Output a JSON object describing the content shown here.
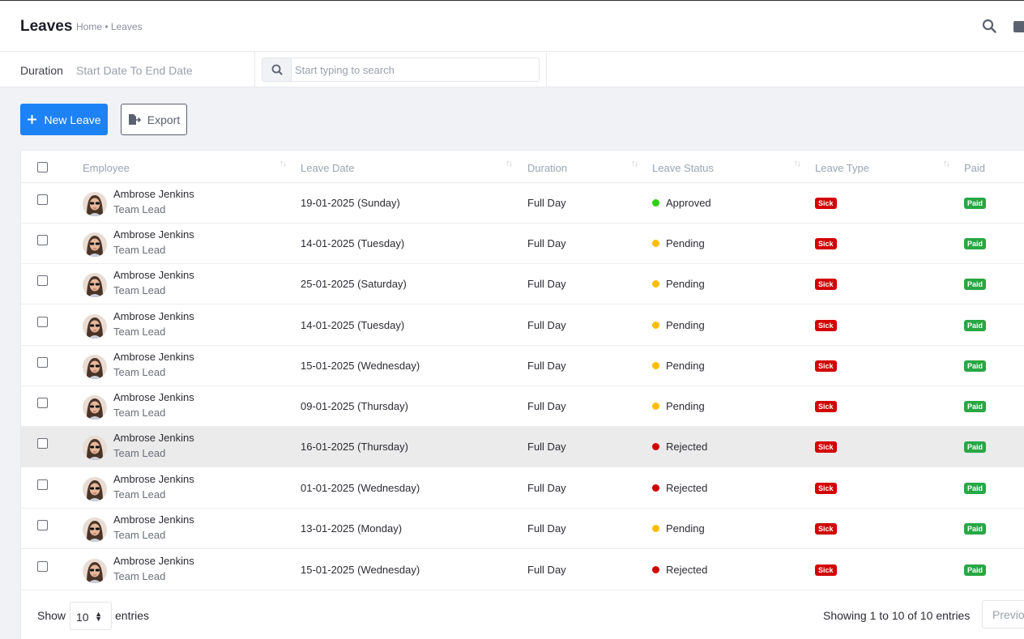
{
  "header": {
    "title": "Leaves",
    "breadcrumb": "Home • Leaves"
  },
  "filters": {
    "duration_label": "Duration",
    "duration_value": "Start Date To End Date",
    "search_placeholder": "Start typing to search"
  },
  "toolbar": {
    "new_label": "New Leave",
    "export_label": "Export"
  },
  "table": {
    "columns": [
      "Employee",
      "Leave Date",
      "Duration",
      "Leave Status",
      "Leave Type",
      "Paid"
    ],
    "rows": [
      {
        "name": "Ambrose Jenkins",
        "role": "Team Lead",
        "date": "19-01-2025 (Sunday)",
        "duration": "Full Day",
        "status": "Approved",
        "type": "Sick",
        "paid": "Paid"
      },
      {
        "name": "Ambrose Jenkins",
        "role": "Team Lead",
        "date": "14-01-2025 (Tuesday)",
        "duration": "Full Day",
        "status": "Pending",
        "type": "Sick",
        "paid": "Paid"
      },
      {
        "name": "Ambrose Jenkins",
        "role": "Team Lead",
        "date": "25-01-2025 (Saturday)",
        "duration": "Full Day",
        "status": "Pending",
        "type": "Sick",
        "paid": "Paid"
      },
      {
        "name": "Ambrose Jenkins",
        "role": "Team Lead",
        "date": "14-01-2025 (Tuesday)",
        "duration": "Full Day",
        "status": "Pending",
        "type": "Sick",
        "paid": "Paid"
      },
      {
        "name": "Ambrose Jenkins",
        "role": "Team Lead",
        "date": "15-01-2025 (Wednesday)",
        "duration": "Full Day",
        "status": "Pending",
        "type": "Sick",
        "paid": "Paid"
      },
      {
        "name": "Ambrose Jenkins",
        "role": "Team Lead",
        "date": "09-01-2025 (Thursday)",
        "duration": "Full Day",
        "status": "Pending",
        "type": "Sick",
        "paid": "Paid"
      },
      {
        "name": "Ambrose Jenkins",
        "role": "Team Lead",
        "date": "16-01-2025 (Thursday)",
        "duration": "Full Day",
        "status": "Rejected",
        "type": "Sick",
        "paid": "Paid"
      },
      {
        "name": "Ambrose Jenkins",
        "role": "Team Lead",
        "date": "01-01-2025 (Wednesday)",
        "duration": "Full Day",
        "status": "Rejected",
        "type": "Sick",
        "paid": "Paid"
      },
      {
        "name": "Ambrose Jenkins",
        "role": "Team Lead",
        "date": "13-01-2025 (Monday)",
        "duration": "Full Day",
        "status": "Pending",
        "type": "Sick",
        "paid": "Paid"
      },
      {
        "name": "Ambrose Jenkins",
        "role": "Team Lead",
        "date": "15-01-2025 (Wednesday)",
        "duration": "Full Day",
        "status": "Rejected",
        "type": "Sick",
        "paid": "Paid"
      }
    ]
  },
  "status_colors": {
    "Approved": "#2fd10e",
    "Pending": "#fcbd01",
    "Rejected": "#d30000"
  },
  "badge_colors": {
    "sick": "#d30000",
    "paid": "#28a745"
  },
  "footer": {
    "show_label": "Show",
    "page_size": "10",
    "entries_label": "entries",
    "info": "Showing 1 to 10 of 10 entries",
    "previous": "Previous"
  },
  "icons": {
    "search": "search-icon",
    "more": "more-icon",
    "plus": "plus-icon",
    "export": "export-icon",
    "sort": "sort-icon"
  }
}
